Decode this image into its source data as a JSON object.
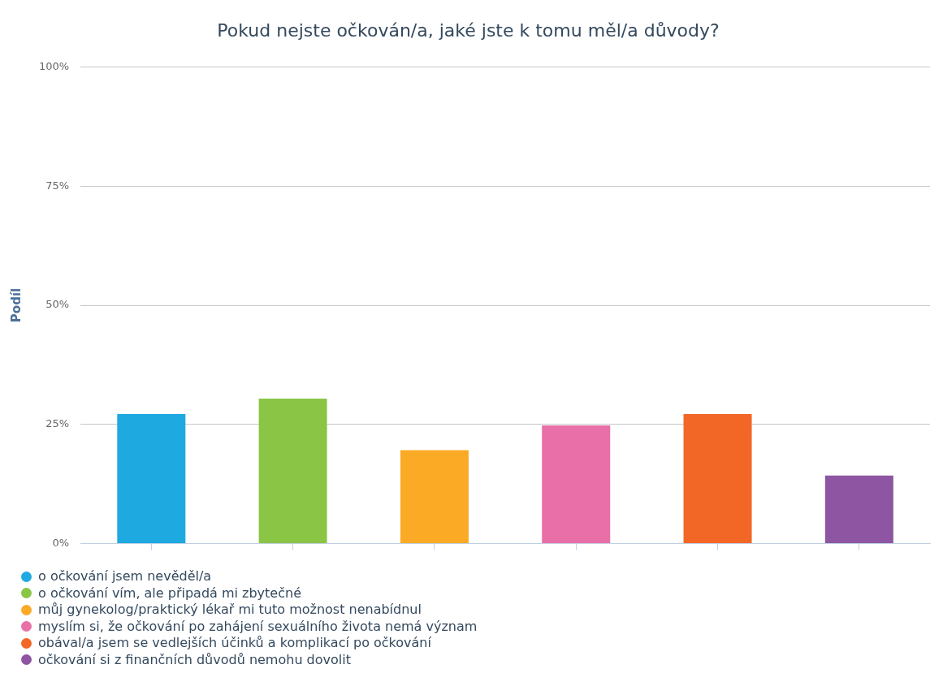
{
  "chart_data": {
    "type": "bar",
    "title": "Pokud nejste očkován/a, jaké jste k tomu měl/a důvody?",
    "ylabel": "Podíl",
    "categories": [
      null,
      null,
      null,
      null,
      null,
      null
    ],
    "series": [
      {
        "name": "o očkování jsem nevěděl/a",
        "color": "#1ea9e0",
        "values": [
          27.2,
          null,
          null,
          null,
          null,
          null
        ]
      },
      {
        "name": "o očkování vím, ale připadá mi zbytečné",
        "color": "#8bc546",
        "values": [
          null,
          30.4,
          null,
          null,
          null,
          null
        ]
      },
      {
        "name": "můj gynekolog/praktický lékař mi tuto možnost nenabídnul",
        "color": "#fbaa26",
        "values": [
          null,
          null,
          19.6,
          null,
          null,
          null
        ]
      },
      {
        "name": "myslím si, že očkování po zahájení sexuálního života nemá význam",
        "color": "#e86fa8",
        "values": [
          null,
          null,
          null,
          24.8,
          null,
          null
        ]
      },
      {
        "name": "obával/a jsem se vedlejších účinků a komplikací po očkování",
        "color": "#f26626",
        "values": [
          null,
          null,
          null,
          null,
          27.2,
          null
        ]
      },
      {
        "name": "očkování si z finančních důvodů nemohu dovolit",
        "color": "#8e55a2",
        "values": [
          null,
          null,
          null,
          null,
          null,
          14.3
        ]
      }
    ],
    "ylim": [
      0,
      100
    ],
    "yticks": [
      {
        "value": 0,
        "label": "0%"
      },
      {
        "value": 25,
        "label": "25%"
      },
      {
        "value": 50,
        "label": "50%"
      },
      {
        "value": 75,
        "label": "75%"
      },
      {
        "value": 100,
        "label": "100%"
      }
    ],
    "grid": "y",
    "legend": "bottom"
  }
}
